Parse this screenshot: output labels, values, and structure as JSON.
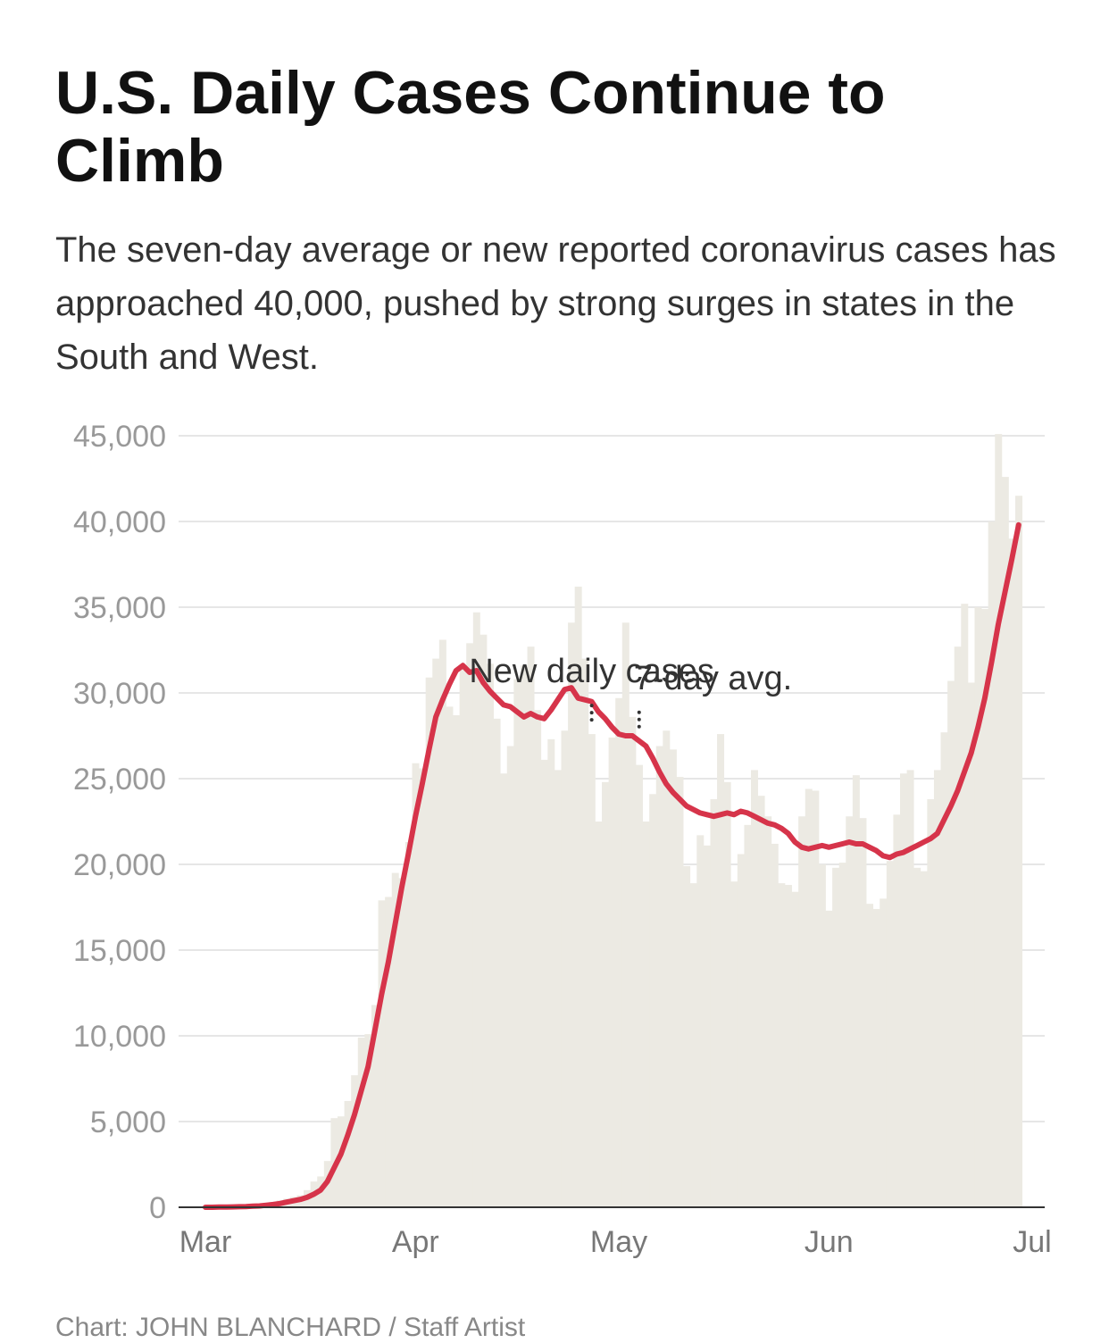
{
  "title": "U.S. Daily Cases Continue to Climb",
  "subtitle": "The seven-day average or new reported coronavirus cases has approached 40,000, pushed by strong surges in states in the South and West.",
  "credit": "Chart: JOHN BLANCHARD / Staff Artist",
  "colors": {
    "bars": "#eceae3",
    "line": "#d6344a",
    "grid": "#e6e6e6",
    "axis": "#333333",
    "tick": "#999999",
    "annotation": "#333333"
  },
  "chart_data": {
    "type": "bar",
    "ylim": [
      0,
      45000
    ],
    "yticks": [
      0,
      5000,
      10000,
      15000,
      20000,
      25000,
      30000,
      35000,
      40000,
      45000
    ],
    "ytick_labels": [
      "0",
      "5,000",
      "10,000",
      "15,000",
      "20,000",
      "25,000",
      "30,000",
      "35,000",
      "40,000",
      "45,000"
    ],
    "xlim": [
      "2020-02-28",
      "2020-07-01"
    ],
    "xticks": [
      "2020-03-01",
      "2020-04-01",
      "2020-05-01",
      "2020-06-01",
      "2020-07-01"
    ],
    "xtick_labels": [
      "Mar",
      "Apr",
      "May",
      "Jun",
      "Jul"
    ],
    "grid": true,
    "start_date": "2020-03-01",
    "series": [
      {
        "name": "New daily cases",
        "type": "bar",
        "values": [
          0,
          10,
          10,
          30,
          20,
          70,
          70,
          100,
          100,
          200,
          300,
          400,
          500,
          600,
          700,
          1000,
          1500,
          1800,
          2700,
          5200,
          5300,
          6200,
          7700,
          9900,
          10100,
          11800,
          17900,
          18100,
          19500,
          19200,
          21300,
          25900,
          25600,
          30900,
          32000,
          33100,
          29200,
          28700,
          31500,
          32900,
          34700,
          33400,
          31700,
          28500,
          25300,
          26900,
          30800,
          31600,
          32700,
          29000,
          26100,
          27300,
          25500,
          27800,
          34100,
          36200,
          32000,
          27600,
          22500,
          24800,
          27400,
          29700,
          34100,
          28600,
          25800,
          22500,
          24100,
          26900,
          27800,
          26700,
          25100,
          19900,
          18900,
          21700,
          21100,
          23800,
          27600,
          24800,
          19000,
          20600,
          22300,
          25500,
          24000,
          22800,
          21200,
          18900,
          18800,
          18400,
          22800,
          24400,
          24300,
          20000,
          17300,
          19800,
          20100,
          22800,
          25200,
          22700,
          17700,
          17400,
          18000,
          20200,
          22900,
          25300,
          25500,
          19800,
          19600,
          23800,
          25500,
          27700,
          30700,
          32700,
          35200,
          30600,
          35000,
          34900,
          40000,
          45100,
          42600,
          39000,
          41500
        ]
      },
      {
        "name": "7-day avg.",
        "type": "line",
        "values": [
          0,
          0,
          10,
          10,
          20,
          30,
          40,
          60,
          80,
          120,
          160,
          220,
          300,
          380,
          460,
          580,
          760,
          1000,
          1500,
          2300,
          3100,
          4200,
          5400,
          6800,
          8200,
          10300,
          12400,
          14300,
          16500,
          18700,
          20700,
          22800,
          24700,
          26700,
          28600,
          29600,
          30500,
          31300,
          31600,
          31200,
          31300,
          30600,
          30100,
          29700,
          29300,
          29200,
          28900,
          28600,
          28800,
          28600,
          28500,
          29000,
          29600,
          30200,
          30300,
          29700,
          29600,
          29500,
          28900,
          28500,
          28000,
          27600,
          27500,
          27500,
          27200,
          26900,
          26200,
          25400,
          24700,
          24200,
          23800,
          23400,
          23200,
          23000,
          22900,
          22800,
          22900,
          23000,
          22900,
          23100,
          23000,
          22800,
          22600,
          22400,
          22300,
          22100,
          21800,
          21300,
          21000,
          20900,
          21000,
          21100,
          21000,
          21100,
          21200,
          21300,
          21200,
          21200,
          21000,
          20800,
          20500,
          20400,
          20600,
          20700,
          20900,
          21100,
          21300,
          21500,
          21800,
          22600,
          23400,
          24300,
          25400,
          26500,
          28000,
          29700,
          31800,
          34000,
          35900,
          37800,
          39800
        ]
      }
    ],
    "annotations": [
      {
        "text": "New daily cases",
        "series": "New daily cases",
        "day": 57
      },
      {
        "text": "7-day avg.",
        "series": "7-day avg.",
        "day": 64
      }
    ]
  }
}
